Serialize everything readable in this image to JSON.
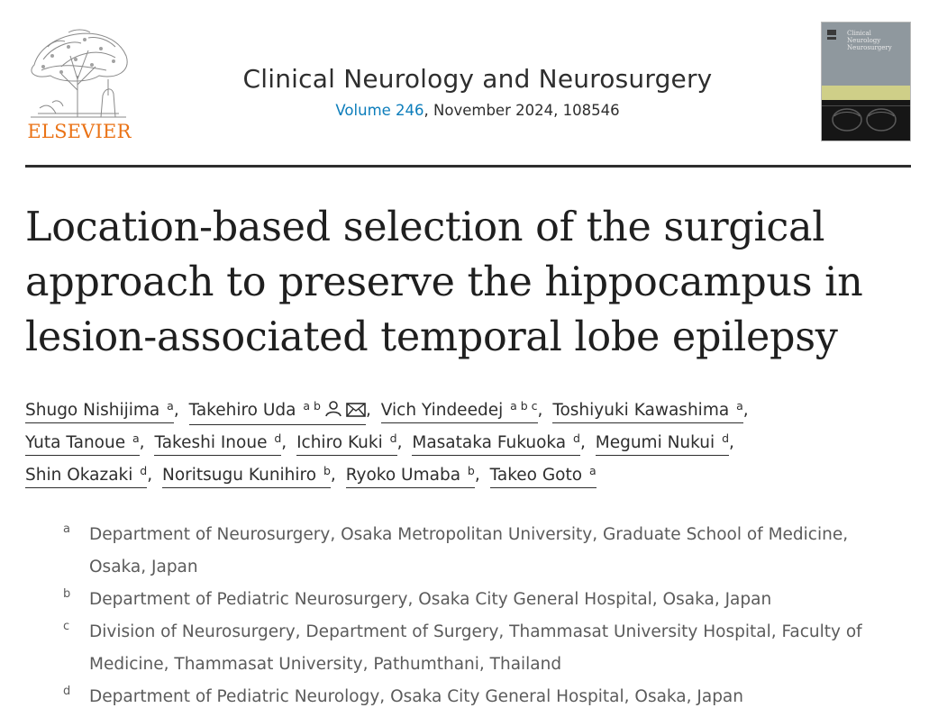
{
  "publisher": {
    "name": "ELSEVIER",
    "color": "#ea7317"
  },
  "journal": {
    "title": "Clinical Neurology and Neurosurgery",
    "volume_link": "Volume 246",
    "issue_rest": ", November 2024, 108546",
    "cover_title_lines": [
      "Clinical",
      "Neurology",
      "Neurosurgery"
    ]
  },
  "article": {
    "title": "Location-based selection of the surgical approach to preserve the hippocampus in lesion-associated temporal lobe epilepsy"
  },
  "authors": [
    {
      "name": "Shugo Nishijima",
      "sup": "a"
    },
    {
      "name": "Takehiro Uda",
      "sup": "a b",
      "icons": [
        "person-icon",
        "email-icon"
      ]
    },
    {
      "name": "Vich Yindeedej",
      "sup": "a b c"
    },
    {
      "name": "Toshiyuki Kawashima",
      "sup": "a"
    },
    {
      "name": "Yuta Tanoue",
      "sup": "a"
    },
    {
      "name": "Takeshi Inoue",
      "sup": "d"
    },
    {
      "name": "Ichiro Kuki",
      "sup": "d"
    },
    {
      "name": "Masataka Fukuoka",
      "sup": "d"
    },
    {
      "name": "Megumi Nukui",
      "sup": "d"
    },
    {
      "name": "Shin Okazaki",
      "sup": "d"
    },
    {
      "name": "Noritsugu Kunihiro",
      "sup": "b"
    },
    {
      "name": "Ryoko Umaba",
      "sup": "b"
    },
    {
      "name": "Takeo Goto",
      "sup": "a"
    }
  ],
  "separator": ",",
  "affiliations": [
    {
      "label": "a",
      "text": "Department of Neurosurgery, Osaka Metropolitan University, Graduate School of Medicine, Osaka, Japan"
    },
    {
      "label": "b",
      "text": "Department of Pediatric Neurosurgery, Osaka City General Hospital, Osaka, Japan"
    },
    {
      "label": "c",
      "text": "Division of Neurosurgery, Department of Surgery, Thammasat University Hospital, Faculty of Medicine, Thammasat University, Pathumthani, Thailand"
    },
    {
      "label": "d",
      "text": "Department of Pediatric Neurology, Osaka City General Hospital, Osaka, Japan"
    }
  ],
  "colors": {
    "link": "#0c7dbb",
    "text": "#2e2e2e",
    "muted": "#5b5b5b"
  }
}
